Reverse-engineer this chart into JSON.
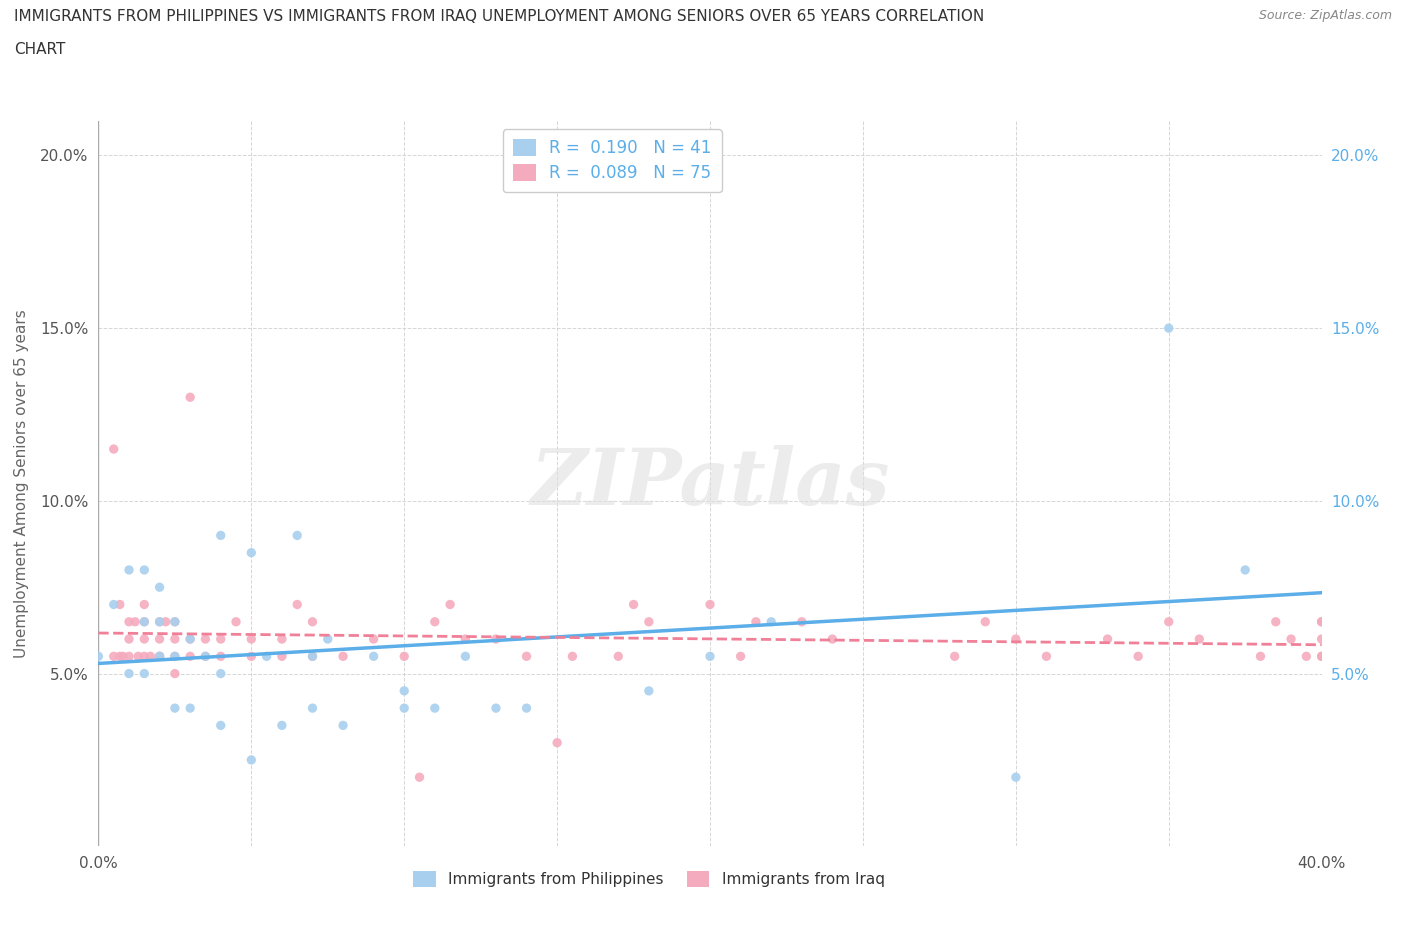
{
  "title_line1": "IMMIGRANTS FROM PHILIPPINES VS IMMIGRANTS FROM IRAQ UNEMPLOYMENT AMONG SENIORS OVER 65 YEARS CORRELATION",
  "title_line2": "CHART",
  "source": "Source: ZipAtlas.com",
  "ylabel": "Unemployment Among Seniors over 65 years",
  "watermark": "ZIPatlas",
  "legend_r1": "R =  0.190",
  "legend_n1": "N = 41",
  "legend_r2": "R =  0.089",
  "legend_n2": "N = 75",
  "color_philippines": "#A8D0EE",
  "color_iraq": "#F4ABBE",
  "trendline_color_philippines": "#5BAEE8",
  "trendline_color_iraq": "#F08098",
  "xlim": [
    0.0,
    0.4
  ],
  "ylim": [
    0.0,
    0.21
  ],
  "background_color": "#FFFFFF",
  "grid_color": "#CCCCCC",
  "title_color": "#333333",
  "axis_label_color": "#666666",
  "right_tick_color": "#5BAEE8",
  "philippines_x": [
    0.0,
    0.005,
    0.01,
    0.01,
    0.015,
    0.015,
    0.015,
    0.02,
    0.02,
    0.02,
    0.025,
    0.025,
    0.025,
    0.03,
    0.03,
    0.035,
    0.04,
    0.04,
    0.04,
    0.05,
    0.05,
    0.055,
    0.06,
    0.065,
    0.07,
    0.07,
    0.075,
    0.08,
    0.09,
    0.1,
    0.1,
    0.11,
    0.12,
    0.13,
    0.14,
    0.18,
    0.2,
    0.22,
    0.3,
    0.35,
    0.375
  ],
  "philippines_y": [
    0.055,
    0.07,
    0.05,
    0.08,
    0.05,
    0.065,
    0.08,
    0.055,
    0.065,
    0.075,
    0.04,
    0.055,
    0.065,
    0.04,
    0.06,
    0.055,
    0.035,
    0.05,
    0.09,
    0.025,
    0.085,
    0.055,
    0.035,
    0.09,
    0.04,
    0.055,
    0.06,
    0.035,
    0.055,
    0.04,
    0.045,
    0.04,
    0.055,
    0.04,
    0.04,
    0.045,
    0.055,
    0.065,
    0.02,
    0.15,
    0.08
  ],
  "iraq_x": [
    0.005,
    0.005,
    0.007,
    0.007,
    0.008,
    0.01,
    0.01,
    0.01,
    0.012,
    0.013,
    0.015,
    0.015,
    0.015,
    0.015,
    0.017,
    0.02,
    0.02,
    0.02,
    0.02,
    0.022,
    0.025,
    0.025,
    0.025,
    0.025,
    0.03,
    0.03,
    0.03,
    0.035,
    0.035,
    0.04,
    0.04,
    0.045,
    0.05,
    0.05,
    0.06,
    0.06,
    0.065,
    0.07,
    0.07,
    0.08,
    0.09,
    0.1,
    0.105,
    0.11,
    0.115,
    0.12,
    0.13,
    0.14,
    0.15,
    0.155,
    0.17,
    0.175,
    0.18,
    0.2,
    0.21,
    0.215,
    0.23,
    0.24,
    0.28,
    0.29,
    0.3,
    0.31,
    0.33,
    0.34,
    0.35,
    0.36,
    0.38,
    0.385,
    0.39,
    0.395,
    0.4,
    0.4,
    0.4,
    0.4,
    0.4
  ],
  "iraq_y": [
    0.055,
    0.115,
    0.055,
    0.07,
    0.055,
    0.06,
    0.065,
    0.055,
    0.065,
    0.055,
    0.055,
    0.06,
    0.065,
    0.07,
    0.055,
    0.055,
    0.06,
    0.065,
    0.055,
    0.065,
    0.05,
    0.055,
    0.06,
    0.065,
    0.055,
    0.06,
    0.13,
    0.055,
    0.06,
    0.055,
    0.06,
    0.065,
    0.055,
    0.06,
    0.055,
    0.06,
    0.07,
    0.055,
    0.065,
    0.055,
    0.06,
    0.055,
    0.02,
    0.065,
    0.07,
    0.06,
    0.06,
    0.055,
    0.03,
    0.055,
    0.055,
    0.07,
    0.065,
    0.07,
    0.055,
    0.065,
    0.065,
    0.06,
    0.055,
    0.065,
    0.06,
    0.055,
    0.06,
    0.055,
    0.065,
    0.06,
    0.055,
    0.065,
    0.06,
    0.055,
    0.065,
    0.06,
    0.055,
    0.065,
    0.055
  ],
  "legend_label_1": "Immigrants from Philippines",
  "legend_label_2": "Immigrants from Iraq"
}
